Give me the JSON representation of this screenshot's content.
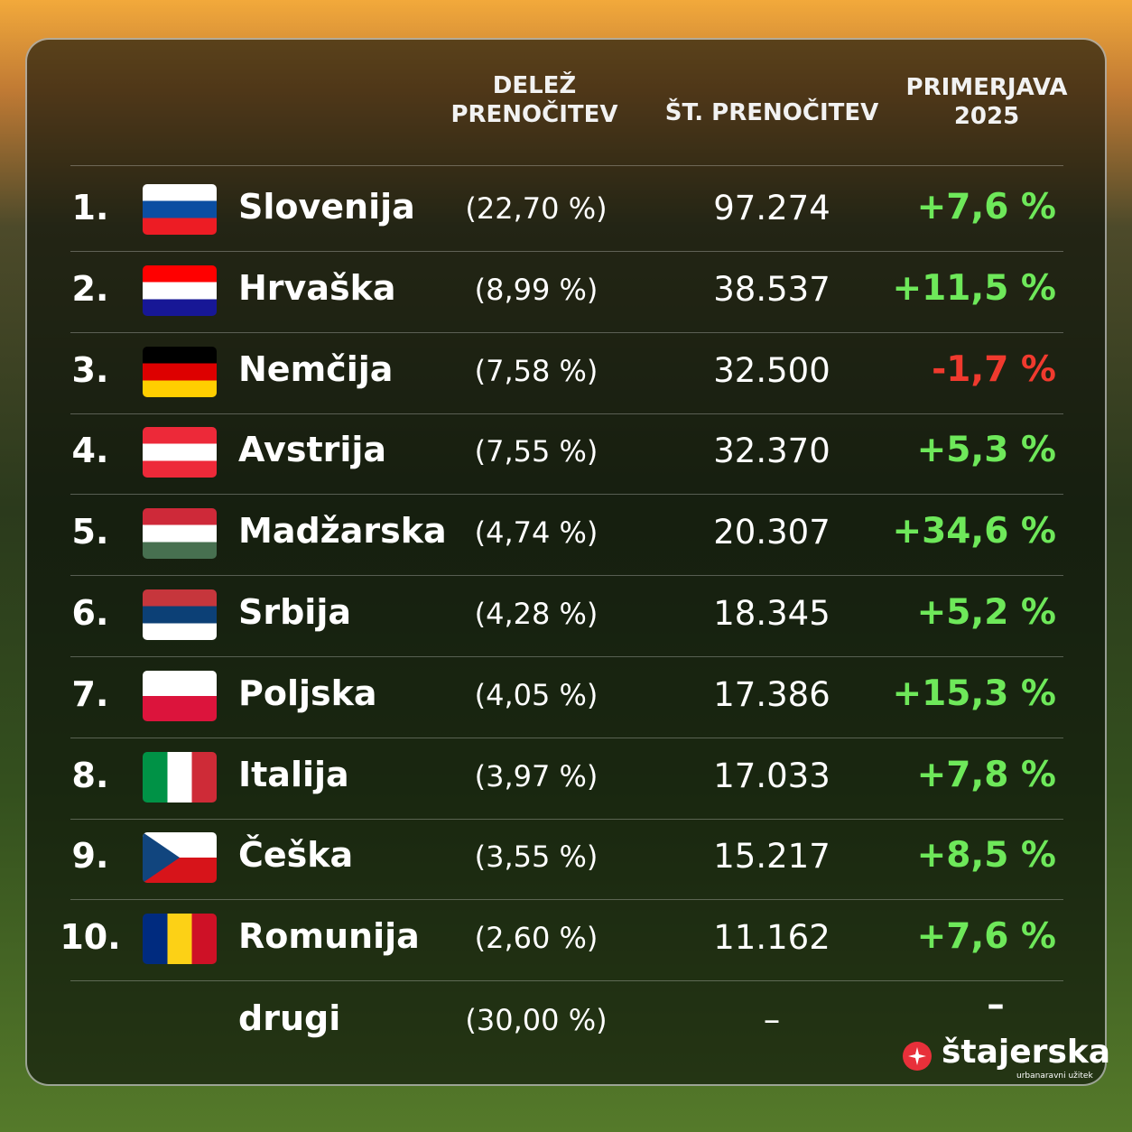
{
  "table": {
    "header": [
      "DELEŽ PRENOČITEV",
      "ŠT. PRENOČITEV",
      "PRIMERJAVA 2025"
    ],
    "rows": [
      [
        "1.",
        "Slovenija",
        "(22,70 %)",
        "97.274",
        "+7,6 %"
      ],
      [
        "2.",
        "Hrvaška",
        "(8,99 %)",
        "38.537",
        "+11,5 %"
      ],
      [
        "3.",
        "Nemčija",
        "(7,58 %)",
        "32.500",
        "-1,7 %"
      ],
      [
        "4.",
        "Avstrija",
        "(7,55 %)",
        "32.370",
        "+5,3 %"
      ],
      [
        "5.",
        "Madžarska",
        "(4,74 %)",
        "20.307",
        "+34,6 %"
      ],
      [
        "6.",
        "Srbija",
        "(4,28 %)",
        "18.345",
        "+5,2 %"
      ],
      [
        "7.",
        "Poljska",
        "(4,05 %)",
        "17.386",
        "+15,3 %"
      ],
      [
        "8.",
        "Italija",
        "(3,97 %)",
        "17.033",
        "+7,8 %"
      ],
      [
        "9.",
        "Češka",
        "(3,55 %)",
        "15.217",
        "+8,5 %"
      ],
      [
        "10.",
        "Romunija",
        "(2,60 %)",
        "11.162",
        "+7,6 %"
      ]
    ],
    "other": [
      "drugi",
      "(30,00 %)",
      "–",
      "–"
    ]
  },
  "logo": {
    "name": "štajerska",
    "tagline": "urbanaravni užitek"
  }
}
